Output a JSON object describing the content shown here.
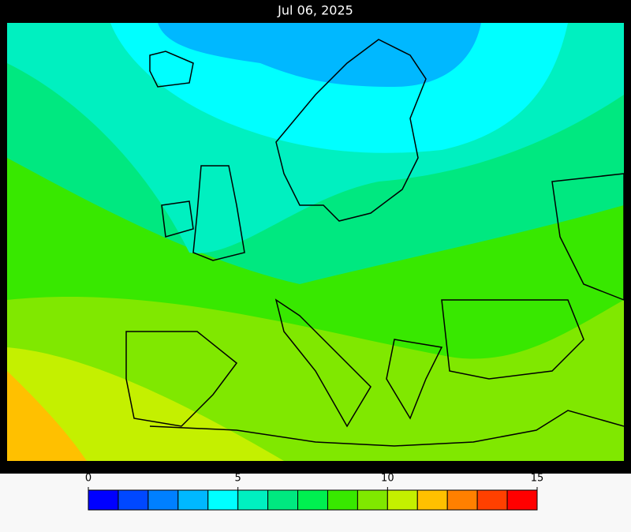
{
  "title": "Jul 06, 2025",
  "colorbar": {
    "range": [
      0,
      15
    ],
    "ticks": [
      0,
      5,
      10,
      15
    ],
    "colors": [
      "#0000ff",
      "#0048ff",
      "#0080ff",
      "#00b8ff",
      "#00ffff",
      "#00f0c0",
      "#00e880",
      "#00f050",
      "#38e800",
      "#80e800",
      "#c4f000",
      "#ffc000",
      "#ff8000",
      "#ff4000",
      "#ff0000"
    ]
  }
}
